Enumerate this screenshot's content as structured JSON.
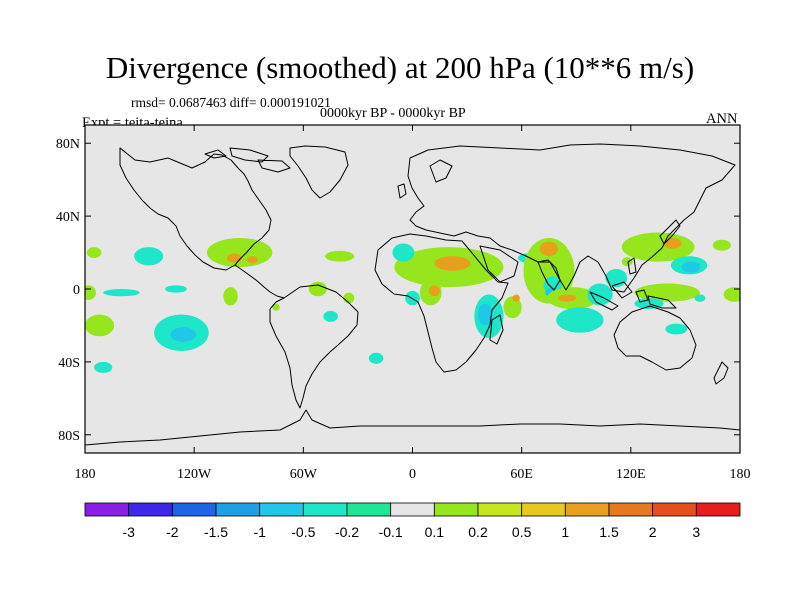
{
  "title": "Divergence (smoothed) at 200 hPa (10**6 m/s)",
  "stats": "rmsd= 0.0687463 diff= 0.000191021",
  "subtitle": "0000kyr BP - 0000kyr BP",
  "experiment": "Expt = teita-teina",
  "season": "ANN",
  "axes": {
    "lat_labels": [
      {
        "value": 80,
        "label": "80N"
      },
      {
        "value": 40,
        "label": "40N"
      },
      {
        "value": 0,
        "label": "0"
      },
      {
        "value": -40,
        "label": "40S"
      },
      {
        "value": -80,
        "label": "80S"
      }
    ],
    "lon_labels": [
      {
        "value": -180,
        "label": "180"
      },
      {
        "value": -120,
        "label": "120W"
      },
      {
        "value": -60,
        "label": "60W"
      },
      {
        "value": 0,
        "label": "0"
      },
      {
        "value": 60,
        "label": "60E"
      },
      {
        "value": 120,
        "label": "120E"
      },
      {
        "value": 180,
        "label": "180"
      }
    ]
  },
  "colorbar": {
    "colors": [
      "#8a1ee6",
      "#3c28e6",
      "#1e64e6",
      "#1ea0e6",
      "#1ec8e6",
      "#1ee6c8",
      "#1ee696",
      "#e6e6e6",
      "#96e61e",
      "#c8e61e",
      "#e6c81e",
      "#e6a01e",
      "#e6781e",
      "#e6501e",
      "#e61e1e"
    ],
    "labels": [
      "-3",
      "-2",
      "-1.5",
      "-1",
      "-0.5",
      "-0.2",
      "-0.1",
      "0.1",
      "0.2",
      "0.5",
      "1",
      "1.5",
      "2",
      "3"
    ]
  },
  "colors": {
    "background": "#e6e6e6",
    "pos_weak": "#96e61e",
    "pos_mid": "#c8e61e",
    "pos_strong": "#e6a01e",
    "neg_weak": "#1ee696",
    "neg_mid": "#1ee6c8",
    "neg_strong": "#1ec8e6"
  },
  "chart_data": {
    "type": "map",
    "variable": "Divergence (smoothed) at 200 hPa",
    "units": "10**6 m/s",
    "projection": "cylindrical equidistant",
    "lon_range": [
      -180,
      180
    ],
    "lat_range": [
      -90,
      90
    ],
    "regions": [
      {
        "lon": -175,
        "lat": 20,
        "rx": 4,
        "ry": 3,
        "level": 0.2
      },
      {
        "lon": -145,
        "lat": 18,
        "rx": 8,
        "ry": 5,
        "level": -0.1
      },
      {
        "lon": -160,
        "lat": -2,
        "rx": 10,
        "ry": 2,
        "level": -0.1
      },
      {
        "lon": -130,
        "lat": 0,
        "rx": 6,
        "ry": 2,
        "level": -0.1
      },
      {
        "lon": -172,
        "lat": -20,
        "rx": 8,
        "ry": 6,
        "level": 0.2
      },
      {
        "lon": -178,
        "lat": -2,
        "rx": 4,
        "ry": 4,
        "level": 0.2
      },
      {
        "lon": -95,
        "lat": 20,
        "rx": 18,
        "ry": 8,
        "level": 0.2
      },
      {
        "lon": -98,
        "lat": 17,
        "rx": 4,
        "ry": 2.5,
        "level": 0.5
      },
      {
        "lon": -88,
        "lat": 16,
        "rx": 3,
        "ry": 2,
        "level": 0.5
      },
      {
        "lon": -127,
        "lat": -24,
        "rx": 15,
        "ry": 10,
        "level": -0.1
      },
      {
        "lon": -126,
        "lat": -25,
        "rx": 7,
        "ry": 4,
        "level": -0.2
      },
      {
        "lon": -100,
        "lat": -4,
        "rx": 4,
        "ry": 5,
        "level": 0.2
      },
      {
        "lon": -170,
        "lat": -43,
        "rx": 5,
        "ry": 3,
        "level": -0.1
      },
      {
        "lon": -40,
        "lat": 18,
        "rx": 8,
        "ry": 3,
        "level": 0.2
      },
      {
        "lon": -52,
        "lat": 0,
        "rx": 5,
        "ry": 4,
        "level": 0.2
      },
      {
        "lon": -75,
        "lat": -10,
        "rx": 2,
        "ry": 2,
        "level": 0.2
      },
      {
        "lon": -35,
        "lat": -5,
        "rx": 3,
        "ry": 3,
        "level": 0.2
      },
      {
        "lon": -45,
        "lat": -15,
        "rx": 4,
        "ry": 3,
        "level": -0.1
      },
      {
        "lon": -20,
        "lat": -38,
        "rx": 4,
        "ry": 3,
        "level": -0.1
      },
      {
        "lon": 20,
        "lat": 12,
        "rx": 30,
        "ry": 11,
        "level": 0.2
      },
      {
        "lon": 22,
        "lat": 14,
        "rx": 10,
        "ry": 4,
        "level": 0.5
      },
      {
        "lon": -5,
        "lat": 20,
        "rx": 6,
        "ry": 5,
        "level": -0.1
      },
      {
        "lon": 10,
        "lat": -2,
        "rx": 6,
        "ry": 7,
        "level": 0.2
      },
      {
        "lon": 12,
        "lat": -1,
        "rx": 3,
        "ry": 3,
        "level": 0.5
      },
      {
        "lon": 0,
        "lat": -5,
        "rx": 4,
        "ry": 4,
        "level": -0.1
      },
      {
        "lon": 42,
        "lat": -15,
        "rx": 8,
        "ry": 12,
        "level": -0.1
      },
      {
        "lon": 40,
        "lat": -14,
        "rx": 4,
        "ry": 6,
        "level": -0.2
      },
      {
        "lon": 55,
        "lat": -10,
        "rx": 5,
        "ry": 6,
        "level": 0.2
      },
      {
        "lon": 57,
        "lat": -5,
        "rx": 2,
        "ry": 2,
        "level": 0.5
      },
      {
        "lon": 63,
        "lat": 17,
        "rx": 5,
        "ry": 2.5,
        "level": -0.1
      },
      {
        "lon": 75,
        "lat": 10,
        "rx": 14,
        "ry": 18,
        "level": 0.2
      },
      {
        "lon": 75,
        "lat": 22,
        "rx": 5,
        "ry": 4,
        "level": 0.5
      },
      {
        "lon": 77,
        "lat": 2,
        "rx": 5,
        "ry": 5,
        "level": -0.1
      },
      {
        "lon": 76,
        "lat": -2,
        "rx": 3,
        "ry": 2.5,
        "level": -0.2
      },
      {
        "lon": 88,
        "lat": -5,
        "rx": 14,
        "ry": 6,
        "level": 0.2
      },
      {
        "lon": 85,
        "lat": -5,
        "rx": 5,
        "ry": 2,
        "level": 0.5
      },
      {
        "lon": 92,
        "lat": -17,
        "rx": 13,
        "ry": 7,
        "level": -0.1
      },
      {
        "lon": 103,
        "lat": -3,
        "rx": 7,
        "ry": 6,
        "level": -0.1
      },
      {
        "lon": 112,
        "lat": 6,
        "rx": 6,
        "ry": 5,
        "level": -0.1
      },
      {
        "lon": 135,
        "lat": 23,
        "rx": 20,
        "ry": 8,
        "level": 0.2
      },
      {
        "lon": 143,
        "lat": 25,
        "rx": 5,
        "ry": 3,
        "level": 0.5
      },
      {
        "lon": 152,
        "lat": 13,
        "rx": 10,
        "ry": 5,
        "level": -0.1
      },
      {
        "lon": 153,
        "lat": 12,
        "rx": 5,
        "ry": 3,
        "level": -0.2
      },
      {
        "lon": 118,
        "lat": 15,
        "rx": 3,
        "ry": 2.5,
        "level": 0.2
      },
      {
        "lon": 170,
        "lat": 24,
        "rx": 5,
        "ry": 3,
        "level": 0.2
      },
      {
        "lon": 140,
        "lat": -2,
        "rx": 18,
        "ry": 5,
        "level": 0.2
      },
      {
        "lon": 130,
        "lat": -8,
        "rx": 8,
        "ry": 3,
        "level": -0.1
      },
      {
        "lon": 145,
        "lat": -22,
        "rx": 6,
        "ry": 3,
        "level": -0.1
      },
      {
        "lon": 158,
        "lat": -5,
        "rx": 3,
        "ry": 2,
        "level": -0.1
      },
      {
        "lon": 177,
        "lat": -3,
        "rx": 6,
        "ry": 4,
        "level": 0.2
      }
    ]
  }
}
